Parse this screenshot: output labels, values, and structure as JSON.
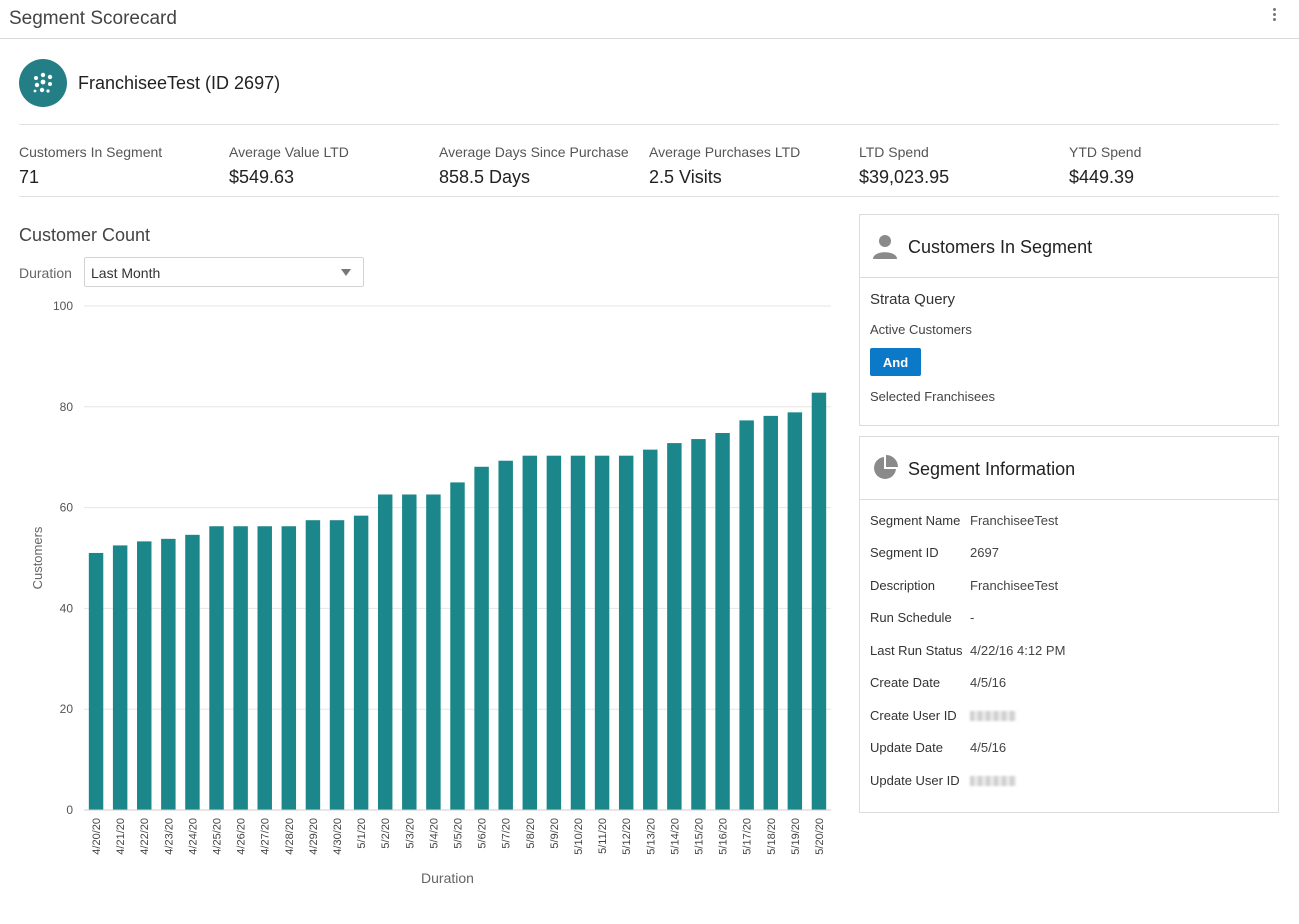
{
  "header": {
    "title": "Segment Scorecard"
  },
  "segment": {
    "name": "FranchiseeTest (ID 2697)"
  },
  "metrics": [
    {
      "label": "Customers In Segment",
      "value": "71"
    },
    {
      "label": "Average Value LTD",
      "value": "$549.63"
    },
    {
      "label": "Average Days Since Purchase",
      "value": "858.5 Days"
    },
    {
      "label": "Average Purchases LTD",
      "value": "2.5 Visits"
    },
    {
      "label": "LTD Spend",
      "value": "$39,023.95"
    },
    {
      "label": "YTD Spend",
      "value": "$449.39"
    }
  ],
  "chart_section": {
    "title": "Customer Count",
    "duration_label": "Duration",
    "duration_value": "Last Month"
  },
  "chart_data": {
    "type": "bar",
    "xlabel": "Duration",
    "ylabel": "Customers",
    "ylim": [
      0,
      100
    ],
    "yticks": [
      0,
      20,
      40,
      60,
      80,
      100
    ],
    "grid": true,
    "color": "#1b878a",
    "categories": [
      "4/20/20",
      "4/21/20",
      "4/22/20",
      "4/23/20",
      "4/24/20",
      "4/25/20",
      "4/26/20",
      "4/27/20",
      "4/28/20",
      "4/29/20",
      "4/30/20",
      "5/1/20",
      "5/2/20",
      "5/3/20",
      "5/4/20",
      "5/5/20",
      "5/6/20",
      "5/7/20",
      "5/8/20",
      "5/9/20",
      "5/10/20",
      "5/11/20",
      "5/12/20",
      "5/13/20",
      "5/14/20",
      "5/15/20",
      "5/16/20",
      "5/17/20",
      "5/18/20",
      "5/19/20",
      "5/20/20"
    ],
    "values": [
      51,
      52.5,
      53.3,
      53.8,
      54.6,
      56.3,
      56.3,
      56.3,
      56.3,
      57.5,
      57.5,
      58.4,
      62.6,
      62.6,
      62.6,
      65,
      68.1,
      69.3,
      70.3,
      70.3,
      70.3,
      70.3,
      70.3,
      71.5,
      72.8,
      73.6,
      74.8,
      77.3,
      78.2,
      78.9,
      82.8
    ]
  },
  "customers_panel": {
    "title": "Customers In Segment",
    "strata_title": "Strata Query",
    "line1": "Active Customers",
    "operator": "And",
    "line2": "Selected Franchisees"
  },
  "info_panel": {
    "title": "Segment Information",
    "rows": [
      {
        "label": "Segment Name",
        "value": "FranchiseeTest"
      },
      {
        "label": "Segment ID",
        "value": "2697"
      },
      {
        "label": "Description",
        "value": "FranchiseeTest"
      },
      {
        "label": "Run Schedule",
        "value": "-"
      },
      {
        "label": "Last Run Status",
        "value": "4/22/16 4:12 PM"
      },
      {
        "label": "Create Date",
        "value": "4/5/16"
      },
      {
        "label": "Create User ID",
        "value": ""
      },
      {
        "label": "Update Date",
        "value": "4/5/16"
      },
      {
        "label": "Update User ID",
        "value": ""
      }
    ]
  },
  "icons": {
    "menu": "kebab-menu-icon",
    "segment": "segment-dots-icon",
    "customers": "person-icon",
    "info": "pie-chart-icon"
  },
  "colors": {
    "accent": "#237f85",
    "button": "#0b78c8",
    "bar": "#1b878a"
  }
}
